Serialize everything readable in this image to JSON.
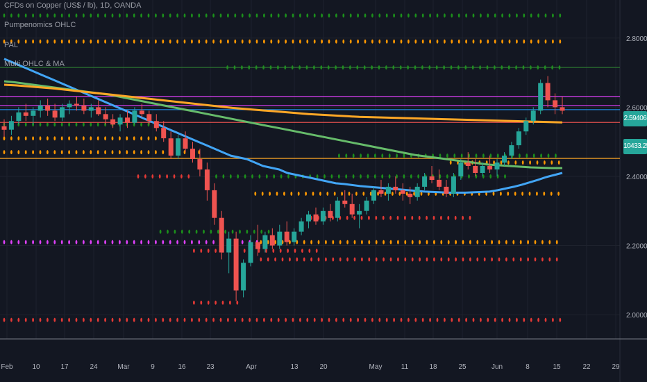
{
  "header": {
    "symbol_line": "CFDs on Copper (US$ / lb), 1D, OANDA",
    "indicator_1": "Pumpenomics OHLC",
    "indicator_2": "PAL",
    "indicator_3": "Multi OHLC & MA"
  },
  "price_labels": {
    "last_price": "2.59406",
    "secondary": "10433.25",
    "last_color": "#26a69a"
  },
  "colors": {
    "background": "#131722",
    "grid": "#1e222d",
    "up": "#26a69a",
    "down": "#ef5350",
    "ma_blue": "#42a5f5",
    "ma_green": "#66bb6a",
    "ma_orange": "#ffa726",
    "magenta": "#e040fb",
    "dot_green": "#1b8f1b",
    "dot_orange": "#ff9800",
    "dot_red": "#e53935"
  },
  "chart_data": {
    "type": "candlestick",
    "title": "CFDs on Copper (US$ / lb), 1D, OANDA",
    "x_tick_labels": [
      "Feb",
      "10",
      "17",
      "24",
      "Mar",
      "9",
      "16",
      "23",
      "Apr",
      "13",
      "20",
      "May",
      "11",
      "18",
      "25",
      "Jun",
      "8",
      "15",
      "22",
      "29"
    ],
    "y_tick_labels": [
      "2.80000",
      "2.60000",
      "2.40000",
      "2.20000",
      "2.00000"
    ],
    "ylim": [
      1.93,
      2.91
    ],
    "grid": true,
    "candles": [
      [
        2.545,
        2.565,
        2.515,
        2.535
      ],
      [
        2.535,
        2.575,
        2.52,
        2.56
      ],
      [
        2.56,
        2.6,
        2.55,
        2.585
      ],
      [
        2.585,
        2.61,
        2.56,
        2.575
      ],
      [
        2.575,
        2.6,
        2.55,
        2.59
      ],
      [
        2.59,
        2.62,
        2.57,
        2.605
      ],
      [
        2.605,
        2.625,
        2.575,
        2.59
      ],
      [
        2.59,
        2.61,
        2.56,
        2.57
      ],
      [
        2.57,
        2.61,
        2.56,
        2.6
      ],
      [
        2.6,
        2.62,
        2.58,
        2.61
      ],
      [
        2.61,
        2.63,
        2.59,
        2.605
      ],
      [
        2.605,
        2.625,
        2.58,
        2.59
      ],
      [
        2.59,
        2.61,
        2.57,
        2.6
      ],
      [
        2.6,
        2.62,
        2.575,
        2.58
      ],
      [
        2.58,
        2.6,
        2.55,
        2.565
      ],
      [
        2.565,
        2.58,
        2.54,
        2.55
      ],
      [
        2.55,
        2.58,
        2.53,
        2.57
      ],
      [
        2.57,
        2.59,
        2.54,
        2.555
      ],
      [
        2.555,
        2.6,
        2.55,
        2.59
      ],
      [
        2.59,
        2.61,
        2.57,
        2.58
      ],
      [
        2.58,
        2.59,
        2.55,
        2.56
      ],
      [
        2.56,
        2.58,
        2.53,
        2.54
      ],
      [
        2.54,
        2.56,
        2.5,
        2.51
      ],
      [
        2.51,
        2.53,
        2.45,
        2.46
      ],
      [
        2.46,
        2.52,
        2.45,
        2.51
      ],
      [
        2.51,
        2.53,
        2.47,
        2.48
      ],
      [
        2.48,
        2.5,
        2.44,
        2.45
      ],
      [
        2.45,
        2.48,
        2.4,
        2.42
      ],
      [
        2.42,
        2.44,
        2.33,
        2.36
      ],
      [
        2.36,
        2.38,
        2.26,
        2.28
      ],
      [
        2.28,
        2.3,
        2.16,
        2.18
      ],
      [
        2.18,
        2.24,
        2.12,
        2.22
      ],
      [
        2.22,
        2.24,
        2.04,
        2.07
      ],
      [
        2.07,
        2.16,
        2.05,
        2.15
      ],
      [
        2.15,
        2.23,
        2.14,
        2.21
      ],
      [
        2.21,
        2.26,
        2.17,
        2.19
      ],
      [
        2.19,
        2.24,
        2.18,
        2.23
      ],
      [
        2.23,
        2.25,
        2.19,
        2.2
      ],
      [
        2.2,
        2.26,
        2.19,
        2.24
      ],
      [
        2.24,
        2.27,
        2.2,
        2.21
      ],
      [
        2.21,
        2.25,
        2.2,
        2.24
      ],
      [
        2.24,
        2.28,
        2.23,
        2.27
      ],
      [
        2.27,
        2.3,
        2.25,
        2.29
      ],
      [
        2.29,
        2.31,
        2.26,
        2.27
      ],
      [
        2.27,
        2.31,
        2.26,
        2.3
      ],
      [
        2.3,
        2.32,
        2.27,
        2.28
      ],
      [
        2.28,
        2.34,
        2.27,
        2.33
      ],
      [
        2.33,
        2.36,
        2.31,
        2.32
      ],
      [
        2.32,
        2.35,
        2.28,
        2.29
      ],
      [
        2.29,
        2.32,
        2.25,
        2.3
      ],
      [
        2.3,
        2.34,
        2.29,
        2.33
      ],
      [
        2.33,
        2.37,
        2.32,
        2.36
      ],
      [
        2.36,
        2.39,
        2.34,
        2.35
      ],
      [
        2.35,
        2.38,
        2.33,
        2.37
      ],
      [
        2.37,
        2.4,
        2.35,
        2.36
      ],
      [
        2.36,
        2.38,
        2.33,
        2.35
      ],
      [
        2.35,
        2.37,
        2.32,
        2.34
      ],
      [
        2.34,
        2.38,
        2.33,
        2.37
      ],
      [
        2.37,
        2.41,
        2.36,
        2.4
      ],
      [
        2.4,
        2.43,
        2.38,
        2.39
      ],
      [
        2.39,
        2.42,
        2.36,
        2.37
      ],
      [
        2.37,
        2.39,
        2.34,
        2.35
      ],
      [
        2.35,
        2.41,
        2.34,
        2.4
      ],
      [
        2.4,
        2.45,
        2.39,
        2.44
      ],
      [
        2.44,
        2.47,
        2.42,
        2.43
      ],
      [
        2.43,
        2.45,
        2.4,
        2.41
      ],
      [
        2.41,
        2.44,
        2.4,
        2.43
      ],
      [
        2.43,
        2.46,
        2.41,
        2.42
      ],
      [
        2.42,
        2.45,
        2.4,
        2.44
      ],
      [
        2.44,
        2.47,
        2.43,
        2.46
      ],
      [
        2.46,
        2.5,
        2.45,
        2.49
      ],
      [
        2.49,
        2.54,
        2.48,
        2.53
      ],
      [
        2.53,
        2.57,
        2.52,
        2.56
      ],
      [
        2.56,
        2.6,
        2.55,
        2.59
      ],
      [
        2.59,
        2.68,
        2.58,
        2.67
      ],
      [
        2.67,
        2.69,
        2.6,
        2.62
      ],
      [
        2.62,
        2.64,
        2.58,
        2.6
      ],
      [
        2.6,
        2.63,
        2.58,
        2.59
      ]
    ],
    "moving_averages": [
      {
        "color": "#42a5f5",
        "values": [
          2.74,
          2.73,
          2.72,
          2.71,
          2.7,
          2.69,
          2.68,
          2.67,
          2.66,
          2.65,
          2.64,
          2.63,
          2.62,
          2.61,
          2.6,
          2.59,
          2.58,
          2.57,
          2.56,
          2.55,
          2.54,
          2.53,
          2.52,
          2.51,
          2.5,
          2.49,
          2.48,
          2.47,
          2.46,
          2.455,
          2.45,
          2.44,
          2.43,
          2.425,
          2.42,
          2.41,
          2.405,
          2.4,
          2.395,
          2.39,
          2.385,
          2.38,
          2.378,
          2.375,
          2.372,
          2.37,
          2.368,
          2.366,
          2.364,
          2.362,
          2.36,
          2.358,
          2.356,
          2.355,
          2.354,
          2.353,
          2.353,
          2.353,
          2.354,
          2.355,
          2.356,
          2.36,
          2.365,
          2.37,
          2.376,
          2.383,
          2.39,
          2.398,
          2.404,
          2.41
        ]
      },
      {
        "color": "#66bb6a",
        "values": [
          2.675,
          2.672,
          2.668,
          2.664,
          2.66,
          2.656,
          2.652,
          2.648,
          2.644,
          2.64,
          2.636,
          2.63,
          2.624,
          2.618,
          2.612,
          2.606,
          2.6,
          2.594,
          2.588,
          2.582,
          2.576,
          2.57,
          2.564,
          2.558,
          2.552,
          2.546,
          2.54,
          2.534,
          2.528,
          2.522,
          2.516,
          2.51,
          2.504,
          2.498,
          2.492,
          2.486,
          2.48,
          2.474,
          2.468,
          2.462,
          2.458,
          2.454,
          2.45,
          2.446,
          2.442,
          2.438,
          2.434,
          2.432,
          2.43,
          2.428,
          2.426,
          2.425,
          2.424,
          2.424
        ]
      },
      {
        "color": "#ffa726",
        "values": [
          2.665,
          2.663,
          2.66,
          2.657,
          2.654,
          2.65,
          2.646,
          2.642,
          2.638,
          2.634,
          2.63,
          2.626,
          2.622,
          2.618,
          2.614,
          2.61,
          2.606,
          2.602,
          2.598,
          2.595,
          2.592,
          2.589,
          2.586,
          2.583,
          2.58,
          2.578,
          2.576,
          2.574,
          2.572,
          2.571,
          2.57,
          2.569,
          2.568,
          2.567,
          2.566,
          2.565,
          2.564,
          2.563,
          2.562,
          2.561,
          2.56,
          2.559,
          2.558,
          2.557,
          2.556
        ]
      }
    ],
    "horizontal_lines": [
      {
        "price": 2.715,
        "color": "#2e7d32"
      },
      {
        "price": 2.631,
        "color": "#e040fb"
      },
      {
        "price": 2.605,
        "color": "#e040fb"
      },
      {
        "price": 2.593,
        "color": "#2196f3"
      },
      {
        "price": 2.556,
        "color": "#ef5350"
      },
      {
        "price": 2.452,
        "color": "#ffa726"
      }
    ],
    "dot_rows": [
      {
        "price": 2.865,
        "color": "#1b8f1b",
        "from": 0.0,
        "to": 1.0
      },
      {
        "price": 2.79,
        "color": "#ff9800",
        "from": 0.0,
        "to": 1.0
      },
      {
        "price": 2.715,
        "color": "#1b8f1b",
        "from": 0.4,
        "to": 1.0
      },
      {
        "price": 2.55,
        "color": "#1b8f1b",
        "from": 0.0,
        "to": 0.28
      },
      {
        "price": 2.51,
        "color": "#ff9800",
        "from": 0.0,
        "to": 0.28
      },
      {
        "price": 2.47,
        "color": "#ff9800",
        "from": 0.0,
        "to": 0.36
      },
      {
        "price": 2.46,
        "color": "#1b8f1b",
        "from": 0.6,
        "to": 1.0
      },
      {
        "price": 2.44,
        "color": "#ff9800",
        "from": 0.8,
        "to": 1.0
      },
      {
        "price": 2.4,
        "color": "#e53935",
        "from": 0.24,
        "to": 0.34
      },
      {
        "price": 2.4,
        "color": "#1b8f1b",
        "from": 0.38,
        "to": 0.9
      },
      {
        "price": 2.35,
        "color": "#ff9800",
        "from": 0.45,
        "to": 1.0
      },
      {
        "price": 2.28,
        "color": "#e53935",
        "from": 0.55,
        "to": 0.84
      },
      {
        "price": 2.24,
        "color": "#1b8f1b",
        "from": 0.28,
        "to": 0.48
      },
      {
        "price": 2.21,
        "color": "#e040fb",
        "from": 0.0,
        "to": 0.46
      },
      {
        "price": 2.21,
        "color": "#ff9800",
        "from": 0.46,
        "to": 1.0
      },
      {
        "price": 2.185,
        "color": "#e53935",
        "from": 0.34,
        "to": 0.56
      },
      {
        "price": 2.16,
        "color": "#e53935",
        "from": 0.46,
        "to": 1.0
      },
      {
        "price": 2.035,
        "color": "#e53935",
        "from": 0.34,
        "to": 0.42
      },
      {
        "price": 1.985,
        "color": "#e53935",
        "from": 0.0,
        "to": 1.0
      }
    ]
  }
}
